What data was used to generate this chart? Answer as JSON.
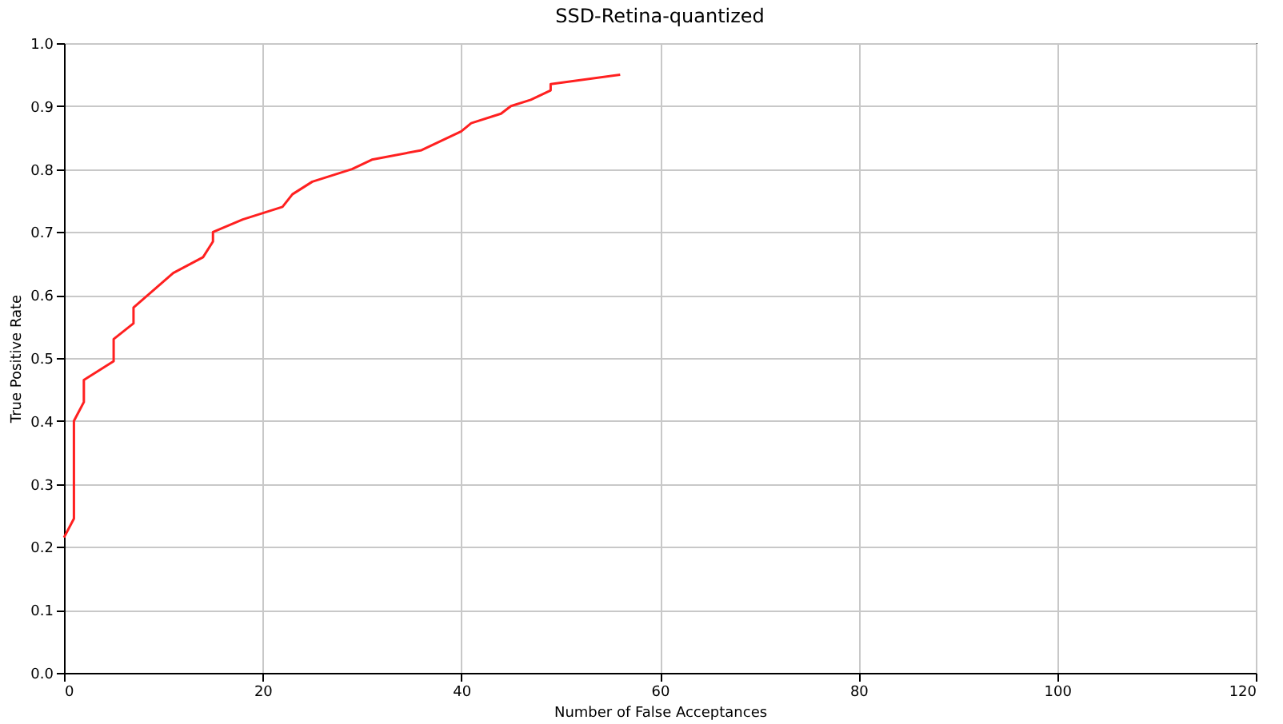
{
  "chart_data": {
    "type": "line",
    "title": "SSD-Retina-quantized",
    "xlabel": "Number of False Acceptances",
    "ylabel": "True Positive Rate",
    "series": [
      {
        "color": "#ff2020",
        "x": [
          0,
          1,
          1,
          2,
          2,
          5,
          5,
          7,
          7,
          11,
          14,
          15,
          15,
          18,
          22,
          23,
          25,
          29,
          31,
          36,
          40,
          41,
          44,
          45,
          47,
          49,
          49,
          56
        ],
        "values": [
          0.215,
          0.245,
          0.4,
          0.43,
          0.465,
          0.495,
          0.53,
          0.555,
          0.58,
          0.635,
          0.66,
          0.685,
          0.7,
          0.72,
          0.74,
          0.76,
          0.78,
          0.8,
          0.815,
          0.83,
          0.86,
          0.873,
          0.888,
          0.9,
          0.91,
          0.925,
          0.935,
          0.95
        ]
      }
    ],
    "xlim": [
      0,
      120
    ],
    "xticks": [
      0,
      20,
      40,
      60,
      80,
      100,
      120
    ],
    "ylim": [
      0,
      1
    ],
    "yticks": [
      {
        "value": 0,
        "label": "0.0"
      },
      0.1,
      0.2,
      0.3,
      0.4,
      0.5,
      0.6,
      0.7,
      0.8,
      0.9,
      {
        "value": 1,
        "label": "1.0"
      }
    ],
    "grid": true
  }
}
